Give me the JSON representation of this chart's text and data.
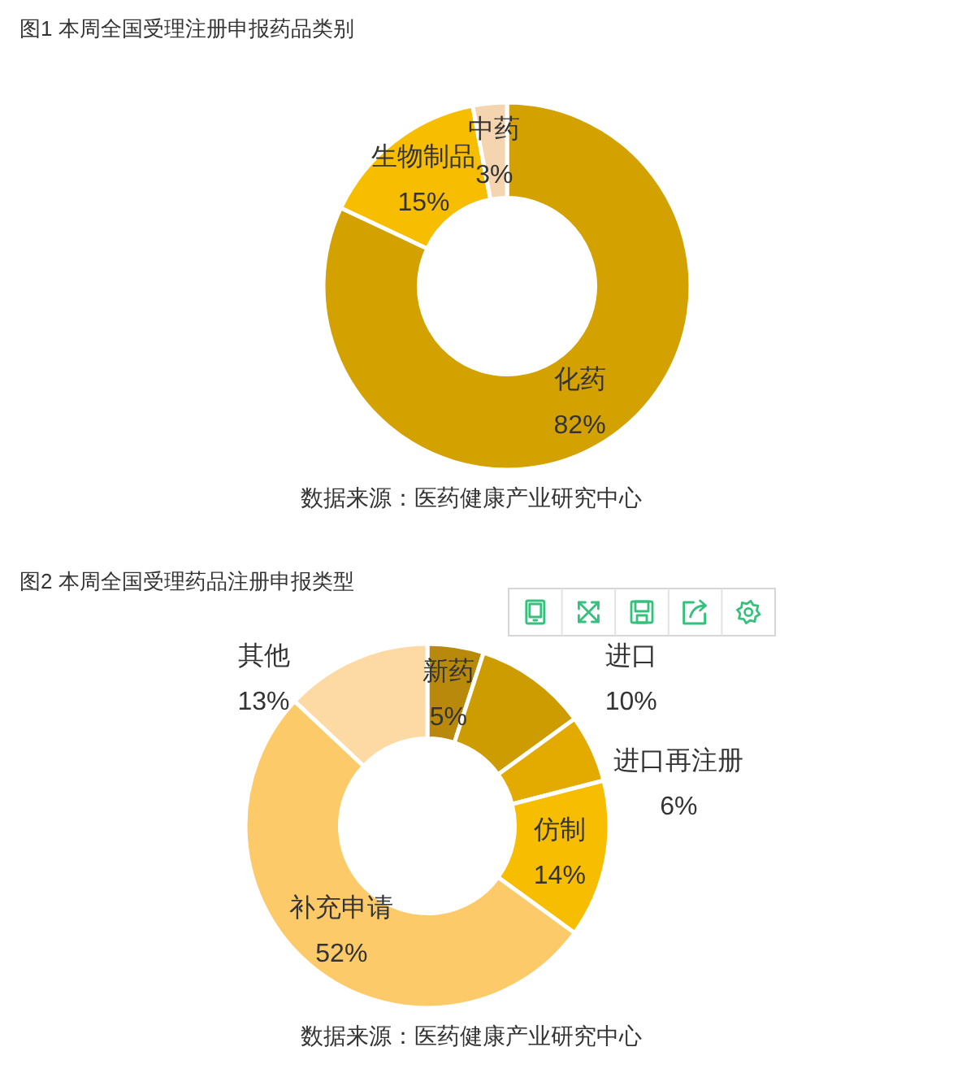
{
  "chart_data": [
    {
      "type": "donut",
      "title": "图1 本周全国受理注册申报药品类别",
      "categories": [
        "化药",
        "生物制品",
        "中药"
      ],
      "values": [
        82,
        15,
        3
      ],
      "value_labels": [
        "82%",
        "15%",
        "3%"
      ],
      "colors": [
        "#d3a100",
        "#f7bd00",
        "#f5d5b0"
      ],
      "annotations": [
        "数据来源：医药健康产业研究中心"
      ]
    },
    {
      "type": "donut",
      "title": "图2 本周全国受理药品注册申报类型",
      "categories": [
        "新药",
        "进口",
        "进口再注册",
        "仿制",
        "补充申请",
        "其他"
      ],
      "values": [
        5,
        10,
        6,
        14,
        52,
        13
      ],
      "value_labels": [
        "5%",
        "10%",
        "6%",
        "14%",
        "52%",
        "13%"
      ],
      "colors": [
        "#b8890b",
        "#cc9c00",
        "#e3aa00",
        "#f7bd00",
        "#fdca6a",
        "#fdd9a4"
      ],
      "annotations": [
        "数据来源：医药健康产业研究中心"
      ]
    }
  ]
}
